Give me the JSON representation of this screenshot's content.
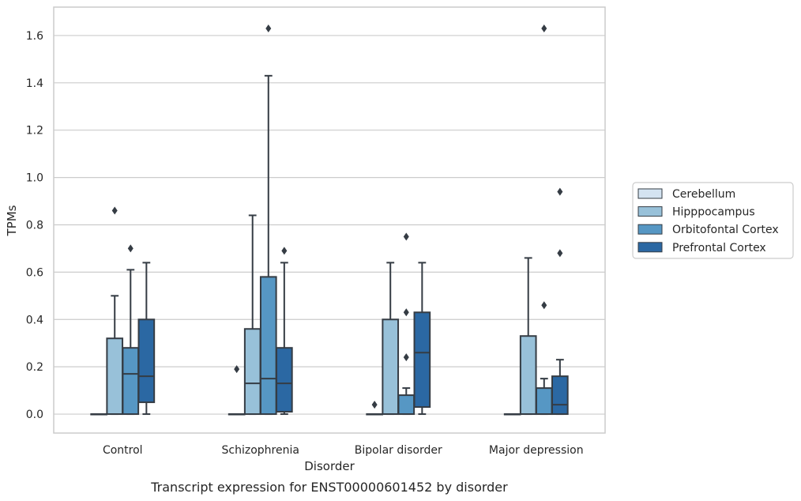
{
  "chart_data": {
    "type": "box",
    "title": "Transcript expression for ENST00000601452 by disorder",
    "xlabel": "Disorder",
    "ylabel": "TPMs",
    "ylim": [
      -0.08,
      1.72
    ],
    "yticks": [
      "0.0",
      "0.2",
      "0.4",
      "0.6",
      "0.8",
      "1.0",
      "1.2",
      "1.4",
      "1.6"
    ],
    "grid": "horizontal",
    "legend_position": "right",
    "categories": [
      "Control",
      "Schizophrenia",
      "Bipolar disorder",
      "Major depression"
    ],
    "series": [
      {
        "name": "Cerebellum",
        "color": "#d4e3f1",
        "boxes": [
          {
            "q1": 0,
            "median": 0,
            "q3": 0,
            "whisker_low": 0,
            "whisker_high": 0,
            "outliers": []
          },
          {
            "q1": 0,
            "median": 0,
            "q3": 0,
            "whisker_low": 0,
            "whisker_high": 0,
            "outliers": [
              0.19
            ]
          },
          {
            "q1": 0,
            "median": 0,
            "q3": 0,
            "whisker_low": 0,
            "whisker_high": 0,
            "outliers": [
              0.04
            ]
          },
          {
            "q1": 0,
            "median": 0,
            "q3": 0,
            "whisker_low": 0,
            "whisker_high": 0,
            "outliers": []
          }
        ]
      },
      {
        "name": "Hipppocampus",
        "color": "#98c1d9",
        "boxes": [
          {
            "q1": 0,
            "median": 0,
            "q3": 0.32,
            "whisker_low": 0,
            "whisker_high": 0.5,
            "outliers": [
              0.86
            ]
          },
          {
            "q1": 0,
            "median": 0.13,
            "q3": 0.36,
            "whisker_low": 0,
            "whisker_high": 0.84,
            "outliers": []
          },
          {
            "q1": 0,
            "median": 0,
            "q3": 0.4,
            "whisker_low": 0,
            "whisker_high": 0.64,
            "outliers": []
          },
          {
            "q1": 0,
            "median": 0,
            "q3": 0.33,
            "whisker_low": 0,
            "whisker_high": 0.66,
            "outliers": []
          }
        ]
      },
      {
        "name": "Orbitofontal Cortex",
        "color": "#5697c4",
        "boxes": [
          {
            "q1": 0,
            "median": 0.17,
            "q3": 0.28,
            "whisker_low": 0,
            "whisker_high": 0.61,
            "outliers": [
              0.7
            ]
          },
          {
            "q1": 0,
            "median": 0.15,
            "q3": 0.58,
            "whisker_low": 0,
            "whisker_high": 1.43,
            "outliers": [
              1.63
            ]
          },
          {
            "q1": 0,
            "median": 0,
            "q3": 0.08,
            "whisker_low": 0,
            "whisker_high": 0.11,
            "outliers": [
              0.24,
              0.43,
              0.75
            ]
          },
          {
            "q1": 0,
            "median": 0,
            "q3": 0.11,
            "whisker_low": 0,
            "whisker_high": 0.15,
            "outliers": [
              0.46,
              1.63
            ]
          }
        ]
      },
      {
        "name": "Prefrontal Cortex",
        "color": "#2b68a3",
        "boxes": [
          {
            "q1": 0.05,
            "median": 0.16,
            "q3": 0.4,
            "whisker_low": 0,
            "whisker_high": 0.64,
            "outliers": []
          },
          {
            "q1": 0.01,
            "median": 0.13,
            "q3": 0.28,
            "whisker_low": 0,
            "whisker_high": 0.64,
            "outliers": [
              0.69
            ]
          },
          {
            "q1": 0.03,
            "median": 0.26,
            "q3": 0.43,
            "whisker_low": 0,
            "whisker_high": 0.64,
            "outliers": []
          },
          {
            "q1": 0,
            "median": 0.04,
            "q3": 0.16,
            "whisker_low": 0,
            "whisker_high": 0.23,
            "outliers": [
              0.68,
              0.94
            ]
          }
        ]
      }
    ],
    "edge_color": "#353c44",
    "grid_color": "#cccccc"
  }
}
